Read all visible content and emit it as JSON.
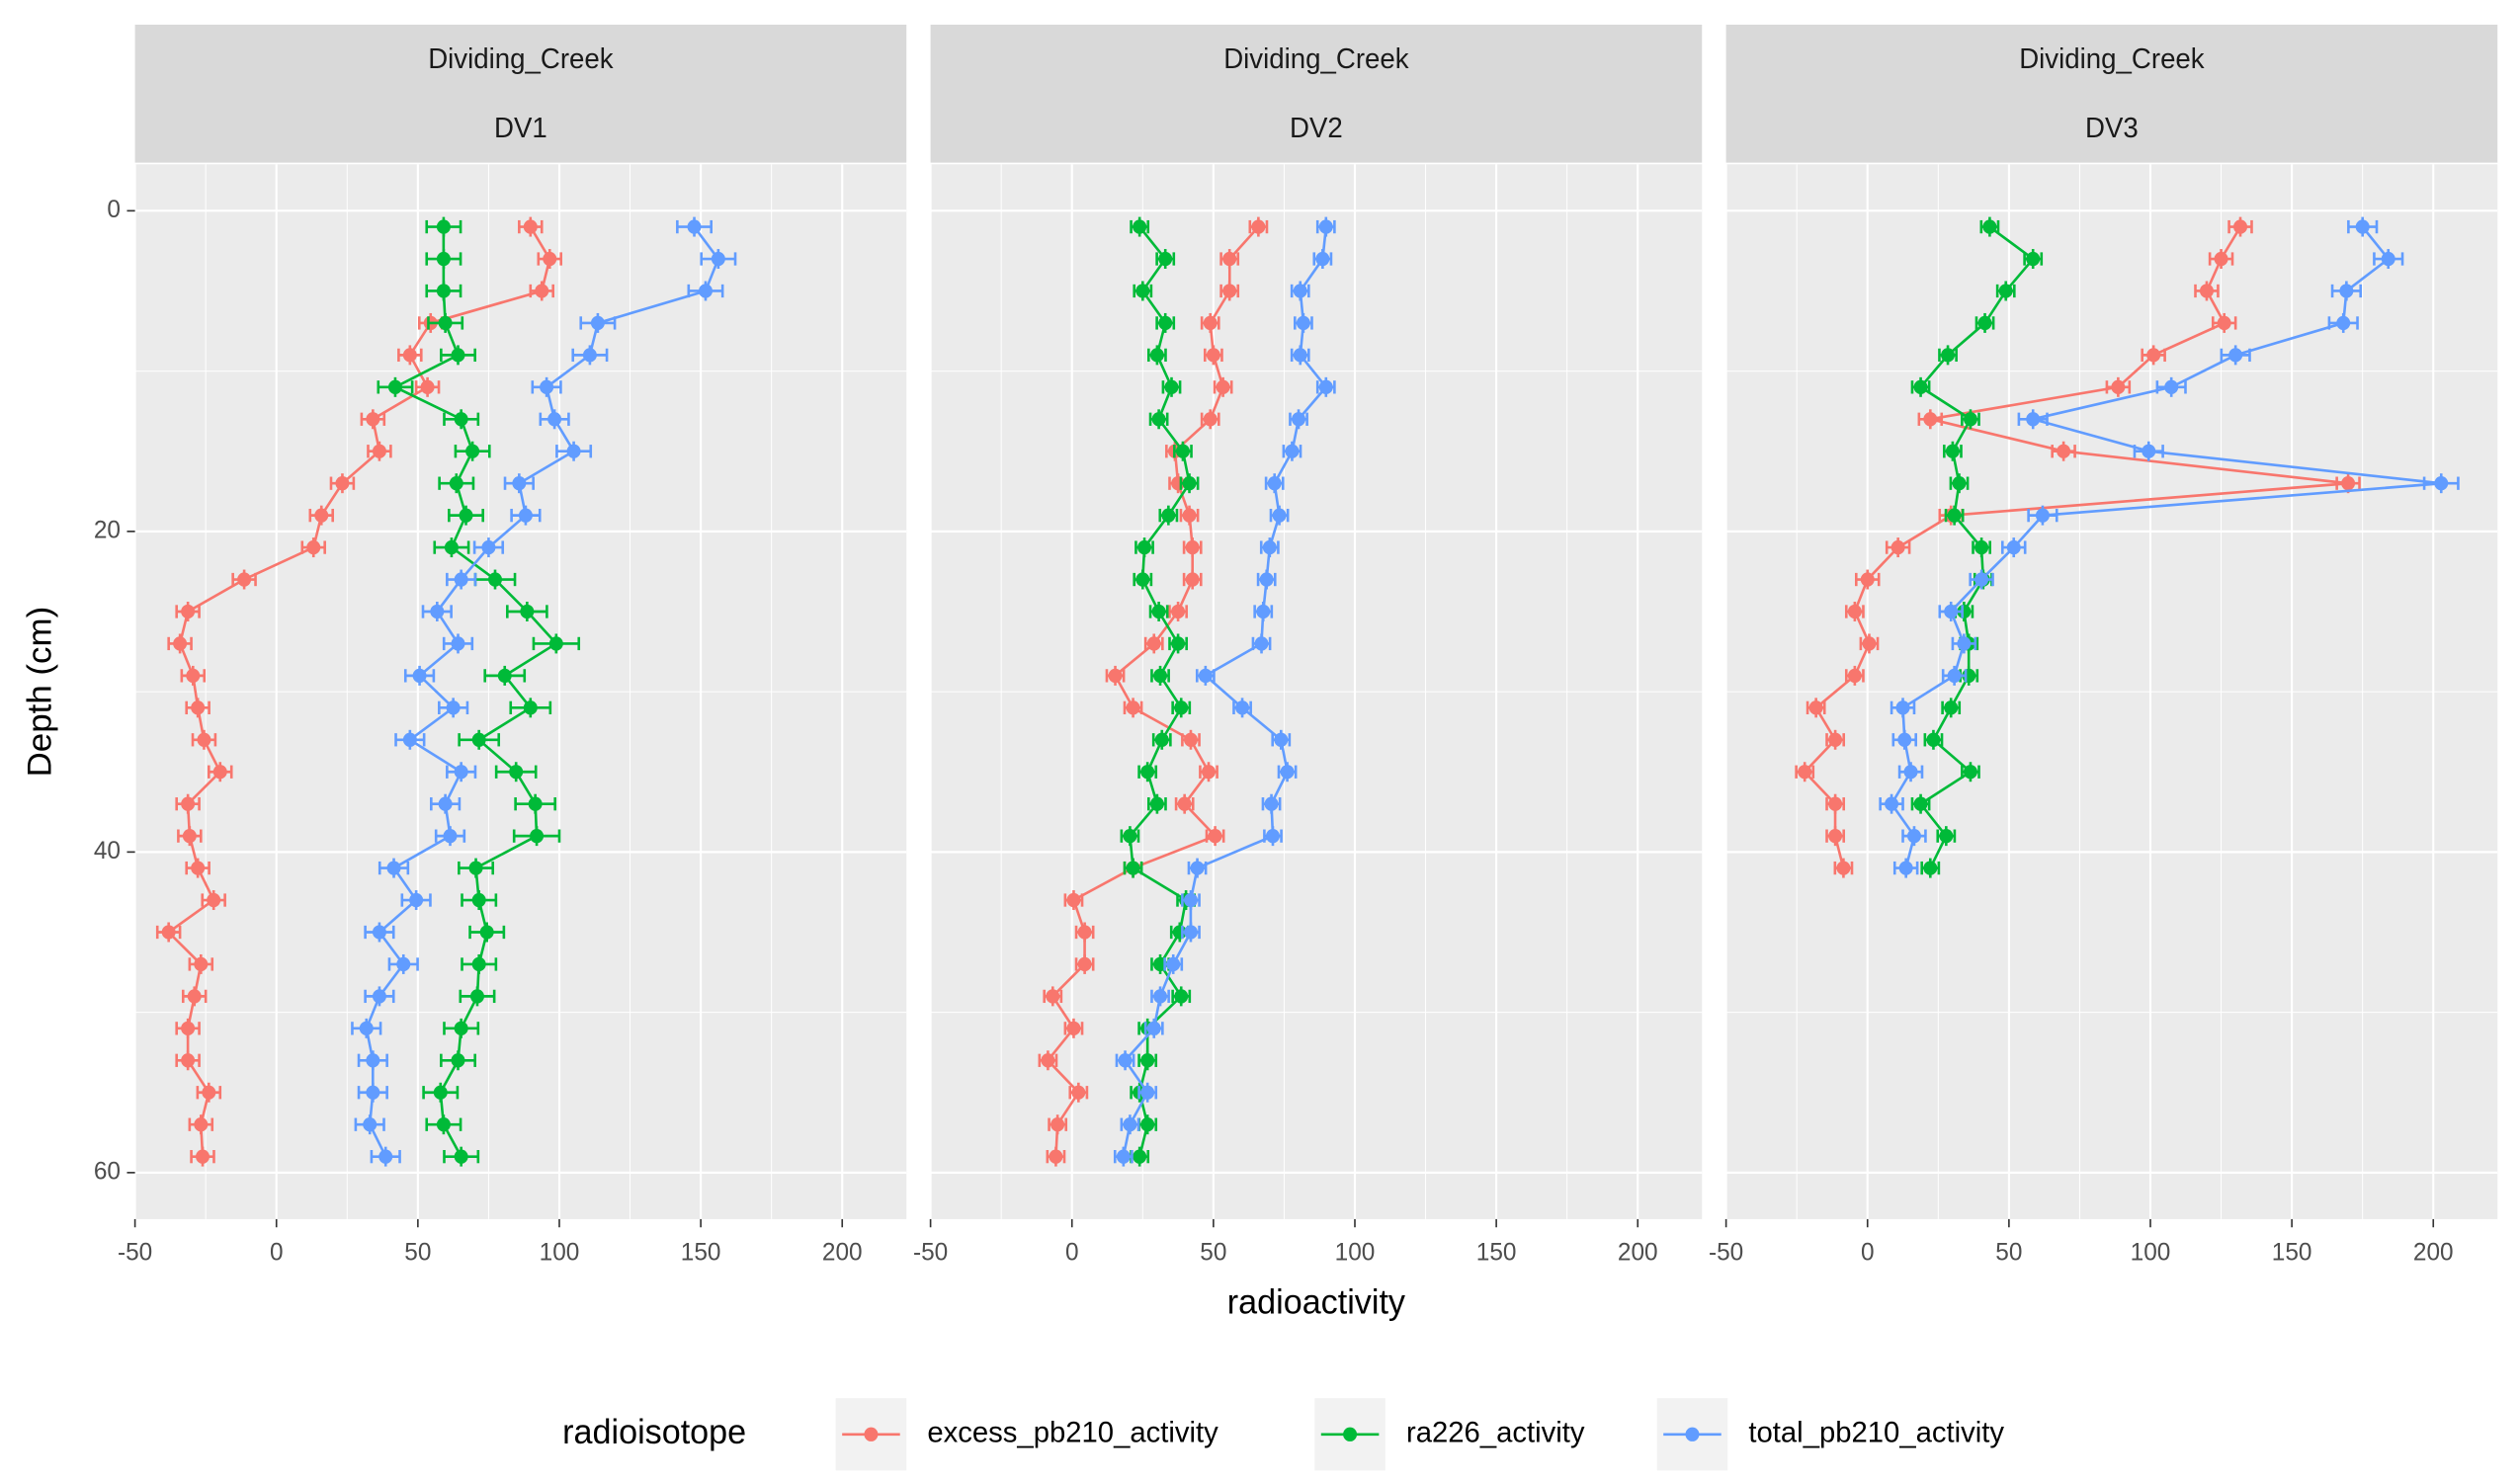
{
  "chart_data": {
    "type": "line",
    "xlabel": "radioactivity",
    "ylabel": "Depth (cm)",
    "legend_title": "radioisotope",
    "legend_position": "bottom",
    "grid": true,
    "y_reversed": true,
    "xlim": [
      -50,
      222.7
    ],
    "ylim": [
      -2.9,
      62.9
    ],
    "xticks": [
      -50,
      0,
      50,
      100,
      150,
      200
    ],
    "yticks": [
      0,
      20,
      40,
      60
    ],
    "series": [
      {
        "name": "excess_pb210_activity",
        "color": "#f8766d"
      },
      {
        "name": "ra226_activity",
        "color": "#00ba38"
      },
      {
        "name": "total_pb210_activity",
        "color": "#619cff"
      }
    ],
    "facets": [
      {
        "strip": [
          "Dividing_Creek",
          "DV1"
        ],
        "depth": [
          1,
          3,
          5,
          7,
          9,
          11,
          13,
          15,
          17,
          19,
          21,
          23,
          25,
          27,
          29,
          31,
          33,
          35,
          37,
          39,
          41,
          43,
          45,
          47,
          49,
          51,
          53,
          55,
          57,
          59
        ],
        "series": [
          {
            "values": [
              89.8,
              96.6,
              93.8,
              54.5,
              47.2,
              53.4,
              34.1,
              36.4,
              23.3,
              15.9,
              13.1,
              -11.4,
              -31.3,
              -34.1,
              -29.5,
              -27.8,
              -25.6,
              -19.9,
              -31.3,
              -30.7,
              -27.8,
              -22.2,
              -38.1,
              -26.7,
              -29,
              -31.3,
              -31.3,
              -23.9,
              -26.7,
              -26.1
            ],
            "errors": [
              4,
              4,
              4,
              4,
              4,
              4,
              4,
              4,
              4,
              4,
              4,
              4,
              4,
              4,
              4,
              4,
              4,
              4,
              4,
              4,
              4,
              4,
              4,
              4,
              4,
              4,
              4,
              4,
              4,
              4
            ]
          },
          {
            "values": [
              59.1,
              59.1,
              59.1,
              59.7,
              64.2,
              42,
              65.3,
              69.3,
              63.6,
              67,
              61.9,
              77.3,
              88.6,
              98.9,
              80.7,
              89.8,
              71.6,
              84.7,
              91.5,
              92,
              70.5,
              71.6,
              74.4,
              71.6,
              71,
              65.3,
              64.2,
              58,
              59.1,
              65.3
            ],
            "errors": [
              6,
              6,
              6,
              6,
              6,
              6,
              6,
              6,
              6,
              6,
              6,
              7,
              7,
              8,
              7,
              7,
              7,
              7,
              7,
              8,
              6,
              6,
              6,
              6,
              6,
              6,
              6,
              6,
              6,
              6
            ]
          },
          {
            "values": [
              147.7,
              156.2,
              151.7,
              113.6,
              110.8,
              95.5,
              98.3,
              105.1,
              85.8,
              88.1,
              75,
              65.3,
              56.8,
              64.2,
              50.6,
              62.5,
              47.2,
              65.3,
              59.7,
              61.4,
              41.5,
              49.4,
              36.4,
              44.9,
              36.4,
              31.8,
              34.1,
              34.1,
              33,
              38.6
            ],
            "errors": [
              6,
              6,
              6,
              6,
              6,
              5,
              5,
              6,
              5,
              5,
              5,
              5,
              5,
              5,
              5,
              5,
              5,
              5,
              5,
              5,
              5,
              5,
              5,
              5,
              5,
              5,
              5,
              5,
              5,
              5
            ]
          }
        ]
      },
      {
        "strip": [
          "Dividing_Creek",
          "DV2"
        ],
        "depth": [
          1,
          3,
          5,
          7,
          9,
          11,
          13,
          15,
          17,
          19,
          21,
          23,
          25,
          27,
          29,
          31,
          33,
          35,
          37,
          39,
          41,
          43,
          45,
          47,
          49,
          51,
          53,
          55,
          57,
          59
        ],
        "series": [
          {
            "values": [
              65.9,
              55.7,
              55.7,
              48.9,
              50,
              53.4,
              48.9,
              36.4,
              37.5,
              41.5,
              42.6,
              42.6,
              37.5,
              29,
              15.3,
              21.6,
              42,
              48.3,
              39.8,
              50.6,
              21.6,
              0.6,
              4.5,
              4.5,
              -6.8,
              0.6,
              -8.5,
              2.3,
              -5.1,
              -5.7
            ],
            "errors": [
              3,
              3,
              3,
              3,
              3,
              3,
              3,
              3,
              3,
              3,
              3,
              3,
              3,
              3,
              3,
              3,
              3,
              3,
              3,
              3,
              3,
              3,
              3,
              3,
              3,
              3,
              3,
              3,
              3,
              3
            ]
          },
          {
            "values": [
              23.9,
              33,
              25,
              33,
              30.1,
              35.2,
              30.7,
              39.2,
              41.5,
              34.1,
              25.6,
              25,
              30.7,
              37.5,
              31.2,
              38.6,
              31.8,
              26.7,
              30.1,
              20.5,
              21.6,
              40.3,
              38.1,
              31.2,
              38.6,
              26.7,
              26.7,
              23.9,
              26.7,
              23.9
            ],
            "errors": [
              3,
              3,
              3,
              3,
              3,
              3,
              3,
              3,
              3,
              3,
              3,
              3,
              3,
              3,
              3,
              3,
              3,
              3,
              3,
              3,
              3,
              3,
              3,
              3,
              3,
              3,
              3,
              3,
              3,
              3
            ]
          },
          {
            "values": [
              89.8,
              88.6,
              80.7,
              81.8,
              80.7,
              89.8,
              80.1,
              77.8,
              71.6,
              73.3,
              69.9,
              68.8,
              67.6,
              67,
              47.2,
              60.2,
              73.9,
              76.1,
              70.5,
              71,
              44.3,
              42,
              42,
              35.8,
              31.2,
              29,
              18.8,
              26.7,
              20.5,
              18.2
            ],
            "errors": [
              3,
              3,
              3,
              3,
              3,
              3,
              3,
              3,
              3,
              3,
              3,
              3,
              3,
              3,
              3,
              3,
              3,
              3,
              3,
              3,
              3,
              3,
              3,
              3,
              3,
              3,
              3,
              3,
              3,
              3
            ]
          }
        ]
      },
      {
        "strip": [
          "Dividing_Creek",
          "DV3"
        ],
        "depth": [
          1,
          3,
          5,
          7,
          9,
          11,
          13,
          15,
          17,
          19,
          21,
          23,
          25,
          27,
          29,
          31,
          33,
          35,
          37,
          39,
          41
        ],
        "series": [
          {
            "values": [
              131.8,
              125,
              119.9,
              126.1,
              101.1,
              88.6,
              22.2,
              69.3,
              169.9,
              29.5,
              10.8,
              0,
              -4.5,
              0.6,
              -4.5,
              -18.2,
              -11.4,
              -22.2,
              -11.4,
              -11.4,
              -8.5
            ],
            "errors": [
              4,
              4,
              4,
              4,
              4,
              4,
              4,
              4,
              4,
              4,
              4,
              4,
              3,
              3,
              3,
              3,
              3,
              3,
              3,
              3,
              3
            ]
          },
          {
            "values": [
              43.2,
              58.5,
              48.9,
              41.5,
              28.4,
              18.8,
              36.4,
              30.1,
              32.4,
              30.7,
              40.3,
              40.9,
              34.1,
              35.8,
              35.8,
              29.5,
              23.3,
              36.4,
              18.8,
              27.8,
              22.2
            ],
            "errors": [
              3,
              3,
              3,
              3,
              3,
              3,
              3,
              3,
              3,
              3,
              3,
              3,
              3,
              3,
              3,
              3,
              3,
              3,
              3,
              3,
              3
            ]
          },
          {
            "values": [
              175,
              184.1,
              169.3,
              168.2,
              130.1,
              107.4,
              58.5,
              99.4,
              202.8,
              61.9,
              51.7,
              40.3,
              29.5,
              34.1,
              30.7,
              12.5,
              13.1,
              15.3,
              8.5,
              16.5,
              13.6
            ],
            "errors": [
              5,
              5,
              5,
              5,
              5,
              5,
              5,
              5,
              6,
              5,
              4,
              4,
              4,
              4,
              4,
              4,
              4,
              4,
              4,
              4,
              4
            ]
          }
        ]
      }
    ]
  }
}
